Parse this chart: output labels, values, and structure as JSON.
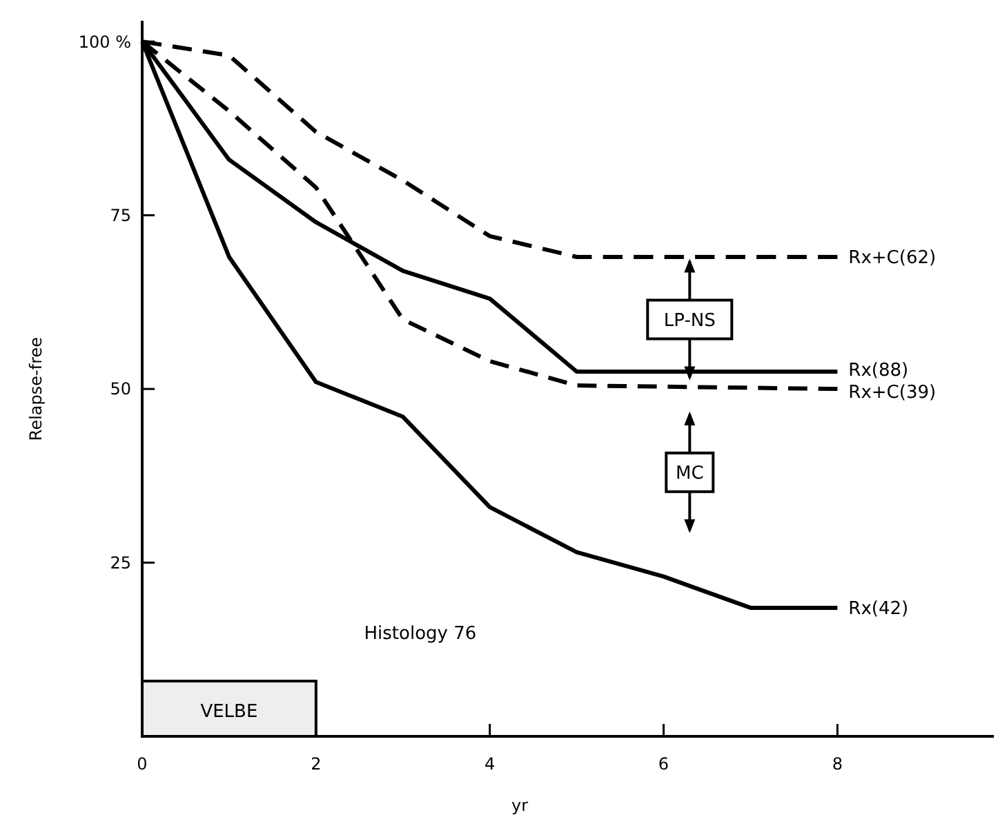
{
  "chart_data": {
    "type": "line",
    "xlabel": "yr",
    "ylabel": "Relapse-free",
    "xlim": [
      0,
      9.8
    ],
    "ylim": [
      0,
      103
    ],
    "xticks": [
      0,
      2,
      4,
      6,
      8
    ],
    "yticks": [
      {
        "value": 100,
        "label": "100 %"
      },
      75,
      50,
      25
    ],
    "x": [
      0,
      1,
      2,
      3,
      4,
      5,
      6,
      7,
      8
    ],
    "series": [
      {
        "name": "Rx+C(62)",
        "color": "#000000",
        "line_style": "dashed",
        "x": [
          0,
          1,
          2,
          3,
          4,
          5,
          8
        ],
        "values": [
          100,
          98,
          87,
          80,
          72,
          69,
          69
        ]
      },
      {
        "name": "Rx(88)",
        "color": "#000000",
        "line_style": "solid",
        "x": [
          0,
          1,
          2,
          3,
          4,
          5,
          8
        ],
        "values": [
          100,
          83,
          74,
          67,
          63,
          52.5,
          52.5
        ]
      },
      {
        "name": "Rx+C(39)",
        "color": "#000000",
        "line_style": "dashed",
        "x": [
          0,
          1,
          2,
          3,
          4,
          5,
          8
        ],
        "values": [
          100,
          90,
          79,
          60,
          54,
          50.5,
          50
        ]
      },
      {
        "name": "Rx(42)",
        "color": "#000000",
        "line_style": "solid",
        "values": [
          100,
          69,
          51,
          46,
          33,
          26.5,
          23,
          18.5,
          18.5
        ]
      }
    ],
    "bands": [
      {
        "axis": "x",
        "from": 0,
        "to": 2,
        "label": "VELBE",
        "color": "#eeeeee"
      }
    ],
    "annotations": [
      "LP-NS",
      "MC",
      "Histology 76"
    ],
    "grid": false,
    "legend": false,
    "marker": "none"
  }
}
